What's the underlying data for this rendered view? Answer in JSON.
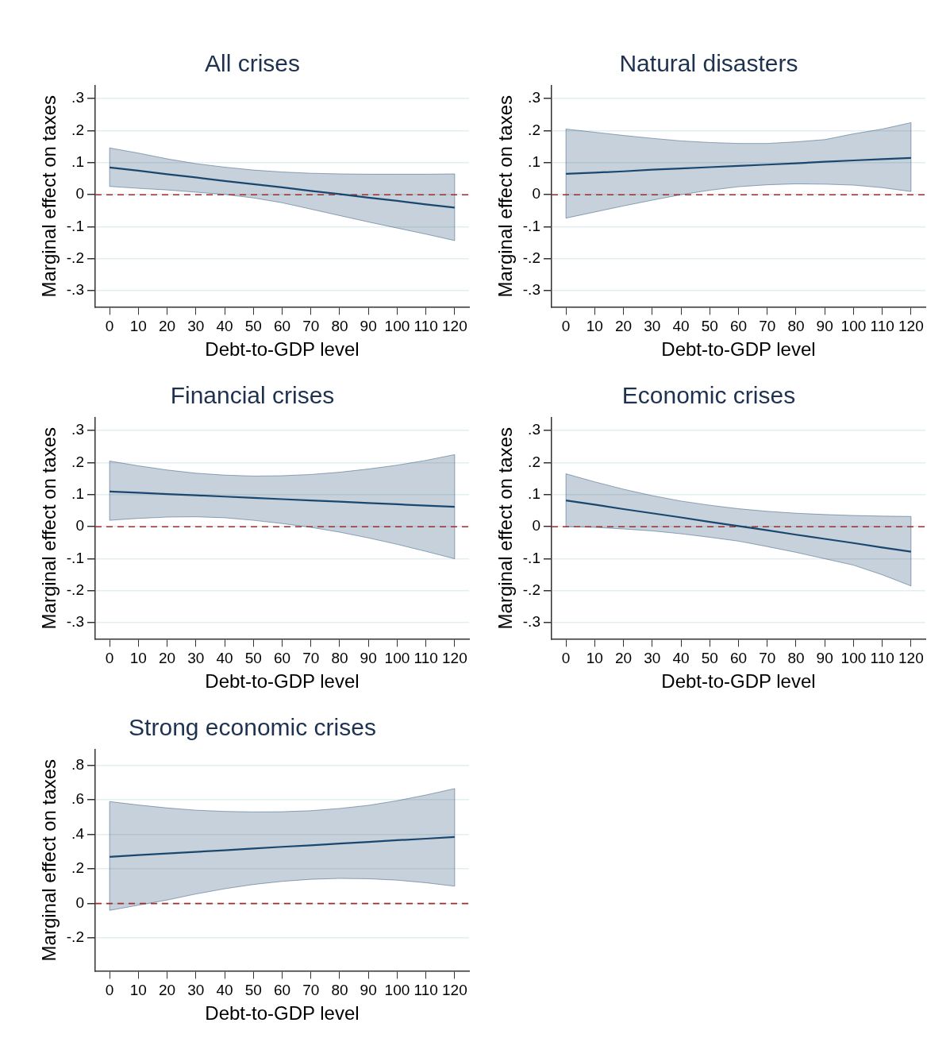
{
  "chart_data": [
    {
      "type": "line",
      "title": "All crises",
      "xlabel": "Debt-to-GDP level",
      "ylabel": "Marginal effect on taxes",
      "x": [
        0,
        10,
        20,
        30,
        40,
        50,
        60,
        70,
        80,
        90,
        100,
        110,
        120
      ],
      "series": [
        {
          "color": "#1a476f",
          "values": [
            0.085,
            0.075,
            0.064,
            0.054,
            0.043,
            0.033,
            0.023,
            0.012,
            0.002,
            -0.009,
            -0.019,
            -0.03,
            -0.04
          ],
          "lower": [
            0.026,
            0.02,
            0.015,
            0.008,
            0.001,
            -0.01,
            -0.025,
            -0.045,
            -0.065,
            -0.085,
            -0.104,
            -0.123,
            -0.143
          ],
          "upper": [
            0.146,
            0.13,
            0.112,
            0.097,
            0.086,
            0.077,
            0.071,
            0.067,
            0.065,
            0.064,
            0.064,
            0.064,
            0.065
          ]
        }
      ],
      "xlim": [
        -5,
        125
      ],
      "ylim": [
        -0.35,
        0.34
      ],
      "xticks": [
        0,
        10,
        20,
        30,
        40,
        50,
        60,
        70,
        80,
        90,
        100,
        110,
        120
      ],
      "yticks": [
        {
          "value": -0.3,
          "label": "-.3"
        },
        {
          "value": -0.2,
          "label": "-.2"
        },
        {
          "value": -0.1,
          "label": "-.1"
        },
        {
          "value": 0,
          "label": "0"
        },
        {
          "value": 0.1,
          "label": ".1"
        },
        {
          "value": 0.2,
          "label": ".2"
        },
        {
          "value": 0.3,
          "label": ".3"
        }
      ],
      "ref_lines": [
        {
          "axis": "y",
          "value": 0,
          "color": "#a03030",
          "line_style": "dashed"
        }
      ],
      "grid": "y",
      "marker": "none",
      "line_style": "solid"
    },
    {
      "type": "line",
      "title": "Natural disasters",
      "xlabel": "Debt-to-GDP level",
      "ylabel": "Marginal effect on taxes",
      "x": [
        0,
        10,
        20,
        30,
        40,
        50,
        60,
        70,
        80,
        90,
        100,
        110,
        120
      ],
      "series": [
        {
          "color": "#1a476f",
          "values": [
            0.065,
            0.069,
            0.073,
            0.078,
            0.082,
            0.086,
            0.09,
            0.094,
            0.098,
            0.103,
            0.107,
            0.111,
            0.115
          ],
          "lower": [
            -0.073,
            -0.054,
            -0.035,
            -0.017,
            0,
            0.014,
            0.025,
            0.031,
            0.034,
            0.033,
            0.03,
            0.022,
            0.01
          ],
          "upper": [
            0.205,
            0.195,
            0.185,
            0.176,
            0.168,
            0.163,
            0.16,
            0.16,
            0.165,
            0.172,
            0.19,
            0.205,
            0.225
          ]
        }
      ],
      "xlim": [
        -5,
        125
      ],
      "ylim": [
        -0.35,
        0.34
      ],
      "xticks": [
        0,
        10,
        20,
        30,
        40,
        50,
        60,
        70,
        80,
        90,
        100,
        110,
        120
      ],
      "yticks": [
        {
          "value": -0.3,
          "label": "-.3"
        },
        {
          "value": -0.2,
          "label": "-.2"
        },
        {
          "value": -0.1,
          "label": "-.1"
        },
        {
          "value": 0,
          "label": "0"
        },
        {
          "value": 0.1,
          "label": ".1"
        },
        {
          "value": 0.2,
          "label": ".2"
        },
        {
          "value": 0.3,
          "label": ".3"
        }
      ],
      "ref_lines": [
        {
          "axis": "y",
          "value": 0,
          "color": "#a03030",
          "line_style": "dashed"
        }
      ],
      "grid": "y",
      "marker": "none",
      "line_style": "solid"
    },
    {
      "type": "line",
      "title": "Financial crises",
      "xlabel": "Debt-to-GDP level",
      "ylabel": "Marginal effect on taxes",
      "x": [
        0,
        10,
        20,
        30,
        40,
        50,
        60,
        70,
        80,
        90,
        100,
        110,
        120
      ],
      "series": [
        {
          "color": "#1a476f",
          "values": [
            0.11,
            0.106,
            0.102,
            0.098,
            0.094,
            0.09,
            0.086,
            0.082,
            0.078,
            0.074,
            0.07,
            0.066,
            0.062
          ],
          "lower": [
            0.02,
            0.026,
            0.03,
            0.031,
            0.028,
            0.02,
            0.01,
            -0.002,
            -0.017,
            -0.035,
            -0.055,
            -0.077,
            -0.1
          ],
          "upper": [
            0.205,
            0.19,
            0.177,
            0.167,
            0.161,
            0.158,
            0.159,
            0.163,
            0.17,
            0.18,
            0.192,
            0.207,
            0.225
          ]
        }
      ],
      "xlim": [
        -5,
        125
      ],
      "ylim": [
        -0.35,
        0.34
      ],
      "xticks": [
        0,
        10,
        20,
        30,
        40,
        50,
        60,
        70,
        80,
        90,
        100,
        110,
        120
      ],
      "yticks": [
        {
          "value": -0.3,
          "label": "-.3"
        },
        {
          "value": -0.2,
          "label": "-.2"
        },
        {
          "value": -0.1,
          "label": "-.1"
        },
        {
          "value": 0,
          "label": "0"
        },
        {
          "value": 0.1,
          "label": ".1"
        },
        {
          "value": 0.2,
          "label": ".2"
        },
        {
          "value": 0.3,
          "label": ".3"
        }
      ],
      "ref_lines": [
        {
          "axis": "y",
          "value": 0,
          "color": "#a03030",
          "line_style": "dashed"
        }
      ],
      "grid": "y",
      "marker": "none",
      "line_style": "solid"
    },
    {
      "type": "line",
      "title": "Economic crises",
      "xlabel": "Debt-to-GDP level",
      "ylabel": "Marginal effect on taxes",
      "x": [
        0,
        10,
        20,
        30,
        40,
        50,
        60,
        70,
        80,
        90,
        100,
        110,
        120
      ],
      "series": [
        {
          "color": "#1a476f",
          "values": [
            0.082,
            0.069,
            0.055,
            0.042,
            0.029,
            0.015,
            0.002,
            -0.011,
            -0.025,
            -0.038,
            -0.051,
            -0.065,
            -0.078
          ],
          "lower": [
            0,
            -0.002,
            -0.007,
            -0.013,
            -0.022,
            -0.033,
            -0.045,
            -0.062,
            -0.08,
            -0.1,
            -0.12,
            -0.15,
            -0.185
          ],
          "upper": [
            0.165,
            0.14,
            0.117,
            0.097,
            0.08,
            0.067,
            0.056,
            0.048,
            0.042,
            0.038,
            0.035,
            0.033,
            0.032
          ]
        }
      ],
      "xlim": [
        -5,
        125
      ],
      "ylim": [
        -0.35,
        0.34
      ],
      "xticks": [
        0,
        10,
        20,
        30,
        40,
        50,
        60,
        70,
        80,
        90,
        100,
        110,
        120
      ],
      "yticks": [
        {
          "value": -0.3,
          "label": "-.3"
        },
        {
          "value": -0.2,
          "label": "-.2"
        },
        {
          "value": -0.1,
          "label": "-.1"
        },
        {
          "value": 0,
          "label": "0"
        },
        {
          "value": 0.1,
          "label": ".1"
        },
        {
          "value": 0.2,
          "label": ".2"
        },
        {
          "value": 0.3,
          "label": ".3"
        }
      ],
      "ref_lines": [
        {
          "axis": "y",
          "value": 0,
          "color": "#a03030",
          "line_style": "dashed"
        }
      ],
      "grid": "y",
      "marker": "none",
      "line_style": "solid"
    },
    {
      "type": "line",
      "title": "Strong economic crises",
      "xlabel": "Debt-to-GDP level",
      "ylabel": "Marginal effect on taxes",
      "x": [
        0,
        10,
        20,
        30,
        40,
        50,
        60,
        70,
        80,
        90,
        100,
        110,
        120
      ],
      "series": [
        {
          "color": "#1a476f",
          "values": [
            0.27,
            0.28,
            0.289,
            0.299,
            0.308,
            0.318,
            0.328,
            0.337,
            0.347,
            0.356,
            0.366,
            0.375,
            0.385
          ],
          "lower": [
            -0.04,
            -0.01,
            0.02,
            0.055,
            0.085,
            0.11,
            0.128,
            0.14,
            0.145,
            0.143,
            0.135,
            0.12,
            0.1
          ],
          "upper": [
            0.59,
            0.57,
            0.553,
            0.54,
            0.533,
            0.53,
            0.531,
            0.537,
            0.55,
            0.568,
            0.595,
            0.628,
            0.665
          ]
        }
      ],
      "xlim": [
        -5,
        125
      ],
      "ylim": [
        -0.39,
        0.89
      ],
      "xticks": [
        0,
        10,
        20,
        30,
        40,
        50,
        60,
        70,
        80,
        90,
        100,
        110,
        120
      ],
      "yticks": [
        {
          "value": -0.2,
          "label": "-.2"
        },
        {
          "value": 0,
          "label": "0"
        },
        {
          "value": 0.2,
          "label": ".2"
        },
        {
          "value": 0.4,
          "label": ".4"
        },
        {
          "value": 0.6,
          "label": ".6"
        },
        {
          "value": 0.8,
          "label": ".8"
        }
      ],
      "ref_lines": [
        {
          "axis": "y",
          "value": 0,
          "color": "#a03030",
          "line_style": "dashed"
        }
      ],
      "grid": "y",
      "marker": "none",
      "line_style": "solid"
    }
  ]
}
